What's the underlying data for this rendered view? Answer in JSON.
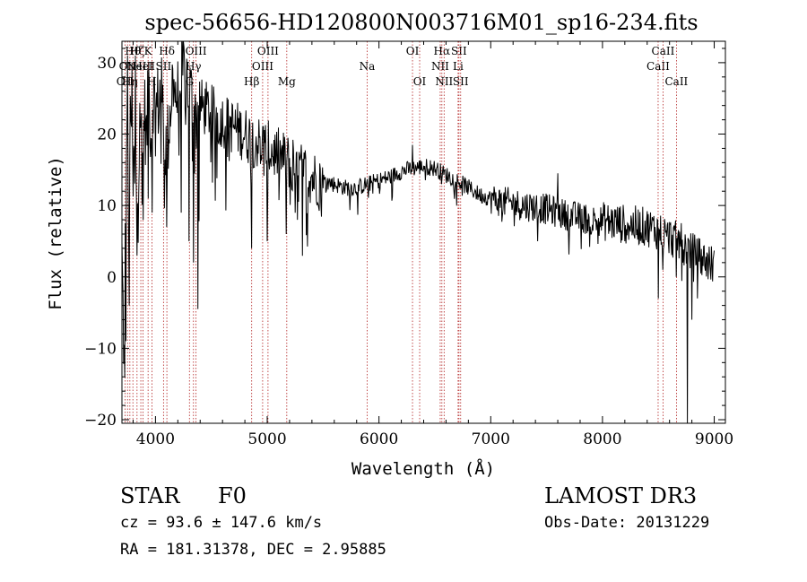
{
  "chart_data": {
    "type": "line",
    "title": "spec-56656-HD120800N003716M01_sp16-234.fits",
    "xlabel": "Wavelength (Å)",
    "ylabel": "Flux (relative)",
    "xlim": [
      3700,
      9100
    ],
    "ylim": [
      -20.5,
      33
    ],
    "x_ticks": [
      4000,
      5000,
      6000,
      7000,
      8000,
      9000
    ],
    "y_ticks": [
      -20,
      -10,
      0,
      10,
      20,
      30
    ],
    "x_tick_labels": [
      "4000",
      "5000",
      "6000",
      "7000",
      "8000",
      "9000"
    ],
    "y_tick_labels": [
      "−20",
      "−10",
      "0",
      "10",
      "20",
      "30"
    ],
    "grid": false,
    "line_color": "#000000",
    "marker_color": "#b22222",
    "series": [
      {
        "anchors": [
          [
            3700,
            3
          ],
          [
            3720,
            -12
          ],
          [
            3740,
            20
          ],
          [
            3760,
            8
          ],
          [
            3780,
            26
          ],
          [
            3800,
            12
          ],
          [
            3820,
            22
          ],
          [
            3840,
            5
          ],
          [
            3860,
            27
          ],
          [
            3880,
            16
          ],
          [
            3900,
            24
          ],
          [
            3920,
            19
          ],
          [
            3940,
            27
          ],
          [
            3960,
            20
          ],
          [
            3980,
            26
          ],
          [
            4000,
            23
          ],
          [
            4050,
            26
          ],
          [
            4100,
            17
          ],
          [
            4150,
            27
          ],
          [
            4200,
            25
          ],
          [
            4250,
            29
          ],
          [
            4300,
            27
          ],
          [
            4350,
            22
          ],
          [
            4400,
            24
          ],
          [
            4500,
            23
          ],
          [
            4600,
            22
          ],
          [
            4700,
            21
          ],
          [
            4800,
            20
          ],
          [
            4900,
            19
          ],
          [
            5000,
            18
          ],
          [
            5100,
            17
          ],
          [
            5200,
            16
          ],
          [
            5300,
            15
          ],
          [
            5400,
            14
          ],
          [
            5500,
            13.5
          ],
          [
            5600,
            13
          ],
          [
            5700,
            12.5
          ],
          [
            5800,
            12.5
          ],
          [
            5900,
            13
          ],
          [
            6000,
            13.5
          ],
          [
            6100,
            14
          ],
          [
            6200,
            14.8
          ],
          [
            6300,
            15.2
          ],
          [
            6400,
            15.5
          ],
          [
            6500,
            15.2
          ],
          [
            6600,
            14.3
          ],
          [
            6700,
            13.5
          ],
          [
            6800,
            12.5
          ],
          [
            6900,
            11.5
          ],
          [
            7000,
            11
          ],
          [
            7100,
            10.5
          ],
          [
            7200,
            10.3
          ],
          [
            7300,
            10
          ],
          [
            7400,
            9.8
          ],
          [
            7500,
            9.5
          ],
          [
            7600,
            9
          ],
          [
            7700,
            8.6
          ],
          [
            7800,
            8.3
          ],
          [
            7900,
            8
          ],
          [
            8000,
            7.8
          ],
          [
            8100,
            7.6
          ],
          [
            8200,
            7.4
          ],
          [
            8300,
            7.2
          ],
          [
            8400,
            7
          ],
          [
            8500,
            6.5
          ],
          [
            8600,
            5.6
          ],
          [
            8700,
            4.8
          ],
          [
            8800,
            3.5
          ],
          [
            8900,
            2.5
          ],
          [
            9000,
            1.5
          ]
        ]
      }
    ],
    "spikes": [
      [
        3725,
        -14
      ],
      [
        3735,
        -9
      ],
      [
        3750,
        31
      ],
      [
        3765,
        -4
      ],
      [
        3790,
        30
      ],
      [
        3820,
        31
      ],
      [
        3834,
        3
      ],
      [
        3889,
        8
      ],
      [
        3934,
        11
      ],
      [
        3968,
        9
      ],
      [
        4102,
        7
      ],
      [
        4230,
        9
      ],
      [
        4300,
        5
      ],
      [
        4340,
        2
      ],
      [
        4380,
        -4.5
      ],
      [
        4861,
        4
      ],
      [
        5000,
        5
      ],
      [
        5172,
        6
      ],
      [
        5270,
        8
      ],
      [
        6300,
        18.5
      ],
      [
        6562,
        13
      ],
      [
        7250,
        9
      ],
      [
        7600,
        14.5
      ],
      [
        7900,
        6
      ],
      [
        8200,
        5
      ],
      [
        8500,
        -3
      ],
      [
        8540,
        1
      ],
      [
        8660,
        0
      ],
      [
        8720,
        2
      ],
      [
        8760,
        -20.5
      ],
      [
        8800,
        -6
      ],
      [
        8850,
        -3
      ]
    ],
    "line_markers": [
      {
        "x": 3727,
        "labels": [
          "OII"
        ],
        "row": 2
      },
      {
        "x": 3750,
        "labels": [
          "OII"
        ],
        "row": 1
      },
      {
        "x": 3771,
        "labels": [
          "Hη"
        ],
        "row": 2
      },
      {
        "x": 3798,
        "labels": [
          "Hθ"
        ],
        "row": 0
      },
      {
        "x": 3835,
        "labels": [
          "Hζ"
        ],
        "row": 0
      },
      {
        "x": 3869,
        "labels": [
          "NeIII"
        ],
        "row": 1
      },
      {
        "x": 3889,
        "labels": [
          "HeI"
        ],
        "row": 1
      },
      {
        "x": 3934,
        "labels": [
          "K"
        ],
        "row": 0
      },
      {
        "x": 3968,
        "labels": [
          "H"
        ],
        "row": 2
      },
      {
        "x": 4072,
        "labels": [
          "SII"
        ],
        "row": 1
      },
      {
        "x": 4102,
        "labels": [
          "Hδ"
        ],
        "row": 0
      },
      {
        "x": 4304,
        "labels": [
          "G"
        ],
        "row": 2
      },
      {
        "x": 4340,
        "labels": [
          "Hγ"
        ],
        "row": 1
      },
      {
        "x": 4363,
        "labels": [
          "OIII"
        ],
        "row": 0
      },
      {
        "x": 4861,
        "labels": [
          "Hβ"
        ],
        "row": 2
      },
      {
        "x": 4959,
        "labels": [
          "OIII"
        ],
        "row": 1
      },
      {
        "x": 5007,
        "labels": [
          "OIII"
        ],
        "row": 0
      },
      {
        "x": 5175,
        "labels": [
          "Mg"
        ],
        "row": 2
      },
      {
        "x": 5894,
        "labels": [
          "Na"
        ],
        "row": 1
      },
      {
        "x": 6300,
        "labels": [
          "OI"
        ],
        "row": 0
      },
      {
        "x": 6364,
        "labels": [
          "OI"
        ],
        "row": 2
      },
      {
        "x": 6548,
        "labels": [
          "NII"
        ],
        "row": 1
      },
      {
        "x": 6563,
        "labels": [
          "Hα"
        ],
        "row": 0
      },
      {
        "x": 6583,
        "labels": [
          "NII"
        ],
        "row": 2
      },
      {
        "x": 6708,
        "labels": [
          "Li"
        ],
        "row": 1
      },
      {
        "x": 6716,
        "labels": [
          "SII"
        ],
        "row": 0
      },
      {
        "x": 6731,
        "labels": [
          "SII"
        ],
        "row": 2
      },
      {
        "x": 8498,
        "labels": [
          "CaII"
        ],
        "row": 1
      },
      {
        "x": 8542,
        "labels": [
          "CaII"
        ],
        "row": 0
      },
      {
        "x": 8662,
        "labels": [
          "CaII"
        ],
        "row": 2
      }
    ]
  },
  "info": {
    "class": "STAR",
    "subclass": "F0",
    "survey": "LAMOST DR3",
    "redshift": "cz =  93.6 ± 147.6 km/s",
    "obs_date": "Obs-Date: 20131229",
    "coords": "RA = 181.31378, DEC =    2.95885"
  }
}
